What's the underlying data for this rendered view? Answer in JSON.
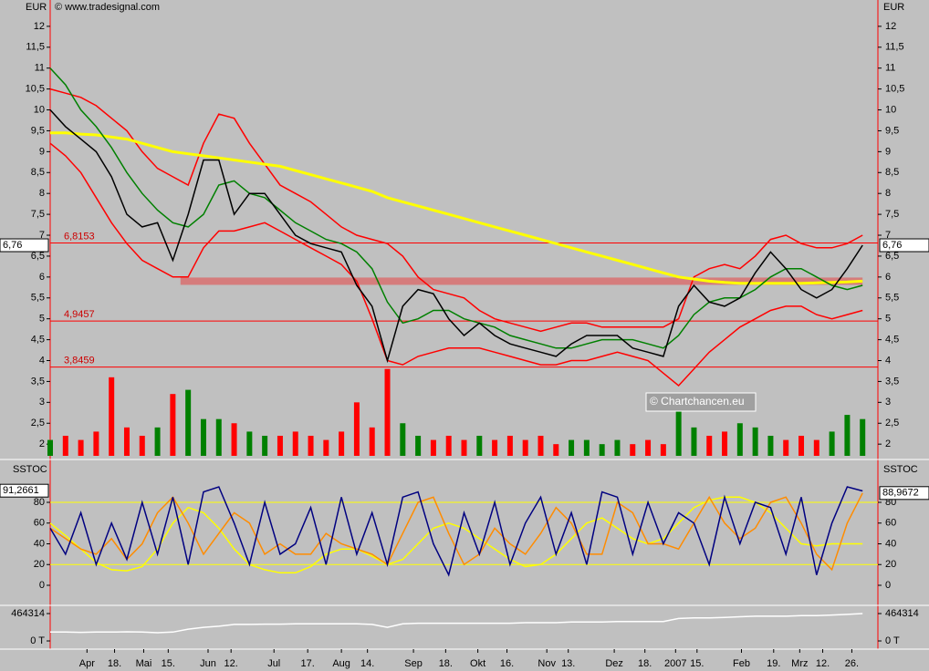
{
  "source": "© www.tradesignal.com",
  "watermark": "© Chartchancen.eu",
  "chart_data": [
    {
      "type": "line",
      "ylabel": "EUR",
      "xlim": [
        0,
        54
      ],
      "ylim": [
        1.72,
        12.63
      ],
      "xticks": [
        {
          "value": 2.4,
          "label": "Apr"
        },
        {
          "value": 4.2,
          "label": "18."
        },
        {
          "value": 6.1,
          "label": "Mai"
        },
        {
          "value": 7.7,
          "label": "15."
        },
        {
          "value": 10.3,
          "label": "Jun"
        },
        {
          "value": 11.8,
          "label": "12."
        },
        {
          "value": 14.6,
          "label": "Jul"
        },
        {
          "value": 16.8,
          "label": "17."
        },
        {
          "value": 19.0,
          "label": "Aug"
        },
        {
          "value": 20.7,
          "label": "14."
        },
        {
          "value": 23.7,
          "label": "Sep"
        },
        {
          "value": 25.8,
          "label": "18."
        },
        {
          "value": 27.9,
          "label": "Okt"
        },
        {
          "value": 29.8,
          "label": "16."
        },
        {
          "value": 32.4,
          "label": "Nov"
        },
        {
          "value": 33.8,
          "label": "13."
        },
        {
          "value": 36.8,
          "label": "Dez"
        },
        {
          "value": 38.8,
          "label": "18."
        },
        {
          "value": 40.8,
          "label": "2007"
        },
        {
          "value": 42.2,
          "label": "15."
        },
        {
          "value": 45.1,
          "label": "Feb"
        },
        {
          "value": 47.2,
          "label": "19."
        },
        {
          "value": 48.9,
          "label": "Mrz"
        },
        {
          "value": 50.4,
          "label": "12."
        },
        {
          "value": 52.3,
          "label": "26."
        }
      ],
      "yticks": [
        2,
        {
          "value": 2.5,
          "label": "2,5"
        },
        3,
        {
          "value": 3.5,
          "label": "3,5"
        },
        4,
        {
          "value": 4.5,
          "label": "4,5"
        },
        5,
        {
          "value": 5.5,
          "label": "5,5"
        },
        6,
        {
          "value": 6.5,
          "label": "6,5"
        },
        7,
        {
          "value": 7.5,
          "label": "7,5"
        },
        8,
        {
          "value": 8.5,
          "label": "8,5"
        },
        9,
        {
          "value": 9.5,
          "label": "9,5"
        },
        10,
        {
          "value": 10.5,
          "label": "10,5"
        },
        11,
        {
          "value": 11.5,
          "label": "11,5"
        },
        12
      ],
      "x": [
        0,
        1,
        2,
        3,
        4,
        5,
        6,
        7,
        8,
        9,
        10,
        11,
        12,
        13,
        14,
        15,
        16,
        17,
        18,
        19,
        20,
        21,
        22,
        23,
        24,
        25,
        26,
        27,
        28,
        29,
        30,
        31,
        32,
        33,
        34,
        35,
        36,
        37,
        38,
        39,
        40,
        41,
        42,
        43,
        44,
        45,
        46,
        47,
        48,
        49,
        50,
        51,
        52,
        53
      ],
      "series": [
        {
          "color": "#ff0000",
          "values": [
            10.5,
            10.4,
            10.3,
            10.1,
            9.8,
            9.5,
            9.0,
            8.6,
            8.4,
            8.2,
            9.2,
            9.9,
            9.8,
            9.2,
            8.7,
            8.2,
            8.0,
            7.8,
            7.5,
            7.2,
            7.0,
            6.9,
            6.8,
            6.5,
            6.0,
            5.7,
            5.6,
            5.5,
            5.2,
            5.0,
            4.9,
            4.8,
            4.7,
            4.8,
            4.9,
            4.9,
            4.8,
            4.8,
            4.8,
            4.8,
            4.8,
            5.0,
            6.0,
            6.2,
            6.3,
            6.2,
            6.5,
            6.9,
            7.0,
            6.8,
            6.7,
            6.7,
            6.8,
            7.0
          ]
        },
        {
          "color": "#ff0000",
          "values": [
            9.2,
            8.9,
            8.5,
            7.9,
            7.3,
            6.8,
            6.4,
            6.2,
            6.0,
            6.0,
            6.7,
            7.1,
            7.1,
            7.2,
            7.3,
            7.1,
            6.9,
            6.7,
            6.5,
            6.3,
            5.9,
            5.0,
            4.0,
            3.9,
            4.1,
            4.2,
            4.3,
            4.3,
            4.3,
            4.2,
            4.1,
            4.0,
            3.9,
            3.9,
            4.0,
            4.0,
            4.1,
            4.2,
            4.1,
            4.0,
            3.7,
            3.4,
            3.8,
            4.2,
            4.5,
            4.8,
            5.0,
            5.2,
            5.3,
            5.3,
            5.1,
            5.0,
            5.1,
            5.2
          ]
        },
        {
          "color": "#ffff00",
          "values": [
            9.45,
            9.45,
            9.42,
            9.4,
            9.35,
            9.3,
            9.2,
            9.1,
            9.0,
            8.95,
            8.9,
            8.85,
            8.8,
            8.75,
            8.7,
            8.65,
            8.55,
            8.45,
            8.35,
            8.25,
            8.15,
            8.05,
            7.9,
            7.8,
            7.7,
            7.6,
            7.5,
            7.4,
            7.3,
            7.2,
            7.1,
            7.0,
            6.9,
            6.8,
            6.7,
            6.6,
            6.5,
            6.4,
            6.3,
            6.2,
            6.1,
            6.0,
            5.95,
            5.9,
            5.87,
            5.85,
            5.85,
            5.85,
            5.85,
            5.85,
            5.86,
            5.87,
            5.88,
            5.9
          ]
        },
        {
          "color": "#008000",
          "values": [
            11.0,
            10.6,
            10.0,
            9.6,
            9.1,
            8.5,
            8.0,
            7.6,
            7.3,
            7.2,
            7.5,
            8.2,
            8.3,
            8.0,
            7.9,
            7.6,
            7.3,
            7.1,
            6.9,
            6.8,
            6.6,
            6.2,
            5.4,
            4.9,
            5.0,
            5.2,
            5.2,
            5.0,
            4.9,
            4.8,
            4.6,
            4.5,
            4.4,
            4.3,
            4.3,
            4.4,
            4.5,
            4.5,
            4.5,
            4.4,
            4.3,
            4.6,
            5.1,
            5.4,
            5.5,
            5.5,
            5.7,
            6.0,
            6.2,
            6.2,
            6.0,
            5.8,
            5.7,
            5.8
          ]
        },
        {
          "color": "#000000",
          "values": [
            10.0,
            9.6,
            9.3,
            9.0,
            8.4,
            7.5,
            7.2,
            7.3,
            6.4,
            7.5,
            8.8,
            8.8,
            7.5,
            8.0,
            8.0,
            7.5,
            7.0,
            6.8,
            6.7,
            6.6,
            5.8,
            5.3,
            4.0,
            5.3,
            5.7,
            5.6,
            5.0,
            4.6,
            4.9,
            4.6,
            4.4,
            4.3,
            4.2,
            4.1,
            4.4,
            4.6,
            4.6,
            4.6,
            4.3,
            4.2,
            4.1,
            5.3,
            5.8,
            5.4,
            5.3,
            5.5,
            6.1,
            6.6,
            6.2,
            5.7,
            5.5,
            5.7,
            6.2,
            6.76
          ]
        }
      ],
      "volume": {
        "up_color": "#008000",
        "down_color": "#ff0000",
        "values": [
          2.1,
          2.2,
          2.1,
          2.3,
          3.6,
          2.4,
          2.2,
          2.4,
          3.2,
          3.3,
          2.6,
          2.6,
          2.5,
          2.3,
          2.2,
          2.2,
          2.3,
          2.2,
          2.1,
          2.3,
          3.0,
          2.4,
          3.8,
          2.5,
          2.2,
          2.1,
          2.2,
          2.1,
          2.2,
          2.1,
          2.2,
          2.1,
          2.2,
          2.0,
          2.1,
          2.1,
          2.0,
          2.1,
          2.0,
          2.1,
          2.0,
          2.9,
          2.4,
          2.2,
          2.3,
          2.5,
          2.4,
          2.2,
          2.1,
          2.2,
          2.1,
          2.3,
          2.7,
          2.6
        ]
      },
      "levels": [
        {
          "value": 6.8153,
          "label": "6,8153"
        },
        {
          "value": 4.9457,
          "label": "4,9457"
        },
        {
          "value": 3.8459,
          "label": "3,8459"
        }
      ],
      "zone": 5.9,
      "last": {
        "value": 6.76,
        "label": "6,76"
      }
    },
    {
      "type": "line",
      "ylabel": "SSTOC",
      "xlim": [
        0,
        54
      ],
      "ylim": [
        -17.6,
        118.7
      ],
      "yticks": [
        0,
        20,
        40,
        60,
        80
      ],
      "bands": [
        20,
        80
      ],
      "x": [
        0,
        1,
        2,
        3,
        4,
        5,
        6,
        7,
        8,
        9,
        10,
        11,
        12,
        13,
        14,
        15,
        16,
        17,
        18,
        19,
        20,
        21,
        22,
        23,
        24,
        25,
        26,
        27,
        28,
        29,
        30,
        31,
        32,
        33,
        34,
        35,
        36,
        37,
        38,
        39,
        40,
        41,
        42,
        43,
        44,
        45,
        46,
        47,
        48,
        49,
        50,
        51,
        52,
        53
      ],
      "series": [
        {
          "color": "#ffff00",
          "values": [
            60,
            48,
            35,
            22,
            15,
            14,
            18,
            35,
            60,
            75,
            70,
            55,
            35,
            20,
            15,
            12,
            12,
            18,
            30,
            35,
            35,
            28,
            20,
            25,
            40,
            55,
            60,
            55,
            45,
            35,
            25,
            18,
            20,
            30,
            45,
            60,
            65,
            55,
            45,
            40,
            45,
            60,
            75,
            82,
            85,
            85,
            80,
            70,
            55,
            40,
            38,
            40,
            40,
            40
          ]
        },
        {
          "color": "#ff8c00",
          "values": [
            55,
            45,
            35,
            30,
            45,
            25,
            40,
            70,
            85,
            60,
            30,
            50,
            70,
            60,
            30,
            40,
            30,
            30,
            50,
            40,
            35,
            30,
            20,
            50,
            80,
            85,
            50,
            20,
            30,
            55,
            40,
            30,
            50,
            75,
            60,
            30,
            30,
            80,
            70,
            40,
            40,
            35,
            60,
            85,
            60,
            45,
            55,
            80,
            85,
            60,
            30,
            15,
            60,
            89
          ]
        },
        {
          "color": "#000080",
          "values": [
            55,
            30,
            70,
            20,
            60,
            25,
            80,
            30,
            85,
            20,
            90,
            95,
            60,
            20,
            80,
            30,
            40,
            75,
            20,
            85,
            30,
            70,
            20,
            85,
            90,
            40,
            10,
            70,
            30,
            80,
            20,
            60,
            85,
            30,
            70,
            20,
            90,
            85,
            30,
            80,
            40,
            70,
            60,
            20,
            85,
            40,
            80,
            75,
            30,
            85,
            10,
            60,
            95,
            91
          ]
        }
      ],
      "last_left": {
        "value": 91.2661,
        "label": "91,2661"
      },
      "last_right": {
        "value": 88.9672,
        "label": "88,9672"
      }
    },
    {
      "type": "line",
      "xlim": [
        0,
        54
      ],
      "ylim": [
        -108000,
        588000
      ],
      "yticks": [
        {
          "value": 0,
          "label": "0 T"
        },
        {
          "value": 464314,
          "label": "464314"
        }
      ],
      "x": [
        0,
        1,
        2,
        3,
        4,
        5,
        6,
        7,
        8,
        9,
        10,
        11,
        12,
        13,
        14,
        15,
        16,
        17,
        18,
        19,
        20,
        21,
        22,
        23,
        24,
        25,
        26,
        27,
        28,
        29,
        30,
        31,
        32,
        33,
        34,
        35,
        36,
        37,
        38,
        39,
        40,
        41,
        42,
        43,
        44,
        45,
        46,
        47,
        48,
        49,
        50,
        51,
        52,
        53
      ],
      "series": [
        {
          "color": "#ffffff",
          "values": [
            150000,
            150000,
            145000,
            150000,
            150000,
            155000,
            150000,
            140000,
            150000,
            200000,
            230000,
            250000,
            280000,
            280000,
            285000,
            285000,
            290000,
            290000,
            290000,
            290000,
            290000,
            280000,
            230000,
            290000,
            300000,
            300000,
            300000,
            300000,
            300000,
            300000,
            300000,
            310000,
            310000,
            310000,
            320000,
            320000,
            320000,
            330000,
            330000,
            330000,
            330000,
            380000,
            390000,
            390000,
            400000,
            410000,
            420000,
            420000,
            420000,
            430000,
            430000,
            440000,
            450000,
            464314
          ]
        }
      ]
    }
  ]
}
